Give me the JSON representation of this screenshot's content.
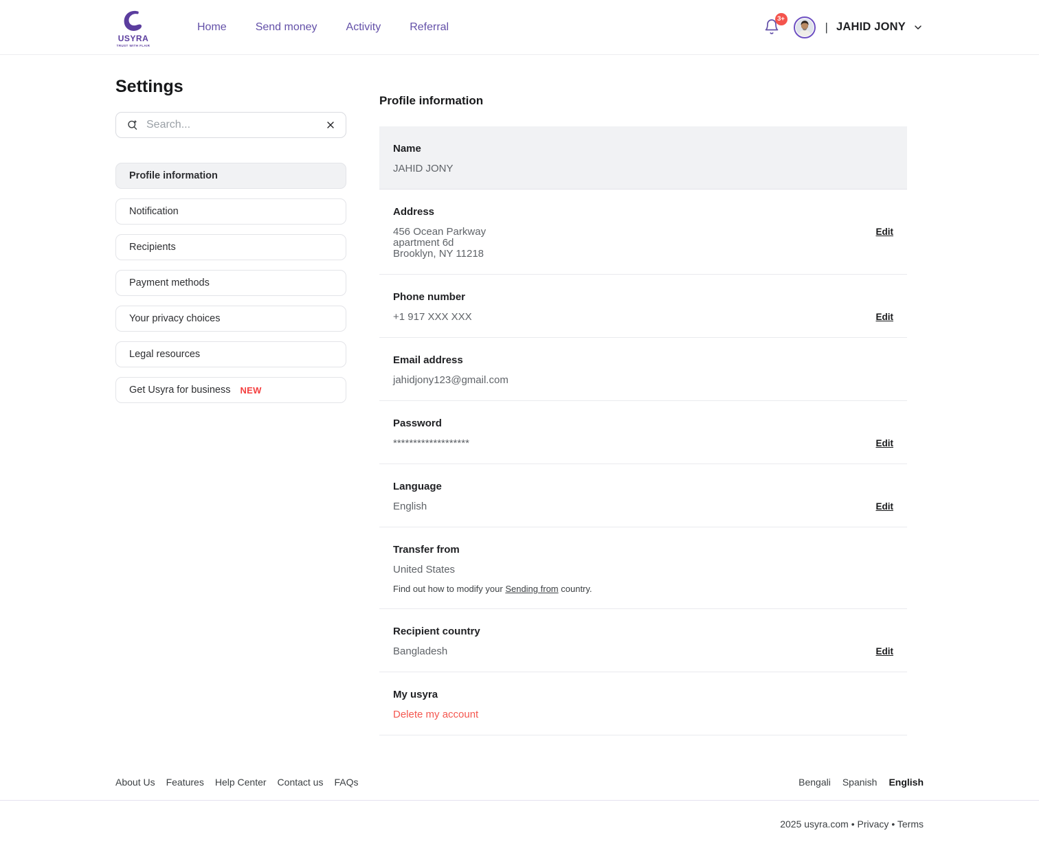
{
  "colors": {
    "brand_purple": "#5b3d9e",
    "nav_purple": "#6350a8",
    "badge_red": "#f4544d",
    "new_red": "#f43f3f",
    "danger_red": "#f4574f",
    "active_bg": "#f1f2f4"
  },
  "header": {
    "brand": {
      "name": "USYRA",
      "tagline": "TRUST WITH FLAIR"
    },
    "nav": [
      {
        "label": "Home"
      },
      {
        "label": "Send money"
      },
      {
        "label": "Activity"
      },
      {
        "label": "Referral"
      }
    ],
    "notification_badge": "3+",
    "separator": "|",
    "user_name": "JAHID JONY"
  },
  "sidebar": {
    "title": "Settings",
    "search": {
      "placeholder": "Search..."
    },
    "items": [
      {
        "label": "Profile information",
        "active": true
      },
      {
        "label": "Notification"
      },
      {
        "label": "Recipients"
      },
      {
        "label": "Payment methods"
      },
      {
        "label": "Your privacy choices"
      },
      {
        "label": "Legal resources"
      },
      {
        "label": "Get Usyra for business",
        "badge": "NEW"
      }
    ]
  },
  "main": {
    "title": "Profile information",
    "edit_label": "Edit",
    "sections": [
      {
        "id": "name",
        "label": "Name",
        "value": "JAHID JONY",
        "highlight": true
      },
      {
        "id": "address",
        "label": "Address",
        "lines": [
          "456 Ocean Parkway",
          "apartment 6d",
          "Brooklyn, NY  11218"
        ],
        "edit": true
      },
      {
        "id": "phone",
        "label": "Phone number",
        "value": "+1 917 XXX XXX",
        "edit": true
      },
      {
        "id": "email",
        "label": "Email address",
        "value": "jahidjony123@gmail.com"
      },
      {
        "id": "password",
        "label": "Password",
        "value": "*******************",
        "edit": true
      },
      {
        "id": "language",
        "label": "Language",
        "value": "English",
        "edit": true
      },
      {
        "id": "transfer-from",
        "label": "Transfer from",
        "value": "United States",
        "note_before": "Find out how to modify your ",
        "note_link": "Sending from",
        "note_after": " country."
      },
      {
        "id": "recipient-country",
        "label": "Recipient country",
        "value": "Bangladesh",
        "edit": true
      },
      {
        "id": "my-usyra",
        "label": "My usyra",
        "value": "Delete my account",
        "danger": true
      }
    ]
  },
  "footer": {
    "links": [
      "About Us",
      "Features",
      "Help Center",
      "Contact us",
      "FAQs"
    ],
    "languages": [
      {
        "label": "Bengali"
      },
      {
        "label": "Spanish"
      },
      {
        "label": "English",
        "active": true
      }
    ],
    "copyright_parts": [
      "2025 usyra.com",
      "Privacy",
      "Terms"
    ],
    "copyright_separator": " • "
  }
}
